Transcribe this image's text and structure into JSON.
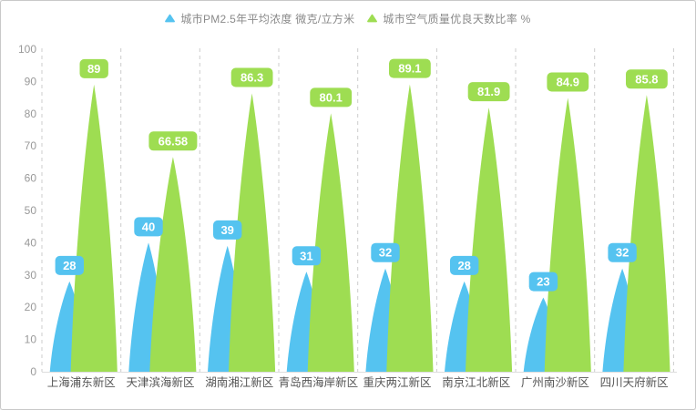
{
  "window": {
    "background": "#ffffff",
    "border_color": "#c9c9c9"
  },
  "chart_data": {
    "type": "bar",
    "subtype": "rounded-peak-pictorial-bar",
    "title": "",
    "xlabel": "",
    "ylabel": "",
    "categories": [
      "上海浦东新区",
      "天津滨海新区",
      "湖南湘江新区",
      "青岛西海岸新区",
      "重庆两江新区",
      "南京江北新区",
      "广州南沙新区",
      "四川天府新区"
    ],
    "series": [
      {
        "name": "城市PM2.5年平均浓度 微克/立方米",
        "marker": "triangle-icon",
        "color": "#55c3f0",
        "values": [
          28,
          40,
          39,
          31,
          32,
          28,
          23,
          32
        ],
        "labels": [
          "28",
          "40",
          "39",
          "31",
          "32",
          "28",
          "23",
          "32"
        ]
      },
      {
        "name": "城市空气质量优良天数比率 %",
        "marker": "triangle-icon",
        "color": "#9edd52",
        "values": [
          89,
          66.58,
          86.3,
          80.1,
          89.1,
          81.9,
          84.9,
          85.8
        ],
        "labels": [
          "89",
          "66.58",
          "86.3",
          "80.1",
          "89.1",
          "81.9",
          "84.9",
          "85.8"
        ]
      }
    ],
    "ylim": [
      0,
      100
    ],
    "ytick_step": 10,
    "yticks": [
      0,
      10,
      20,
      30,
      40,
      50,
      60,
      70,
      80,
      90,
      100
    ],
    "grid": "vertical dashed separator lines between categories",
    "legend_position": "top-center",
    "axis_colors": {
      "tick_label": "#999999",
      "category_label": "#555555",
      "separator": "#cccccc",
      "baseline": "#dddddd",
      "legend_text": "#8a8a8a",
      "badge_text": "#ffffff"
    }
  }
}
